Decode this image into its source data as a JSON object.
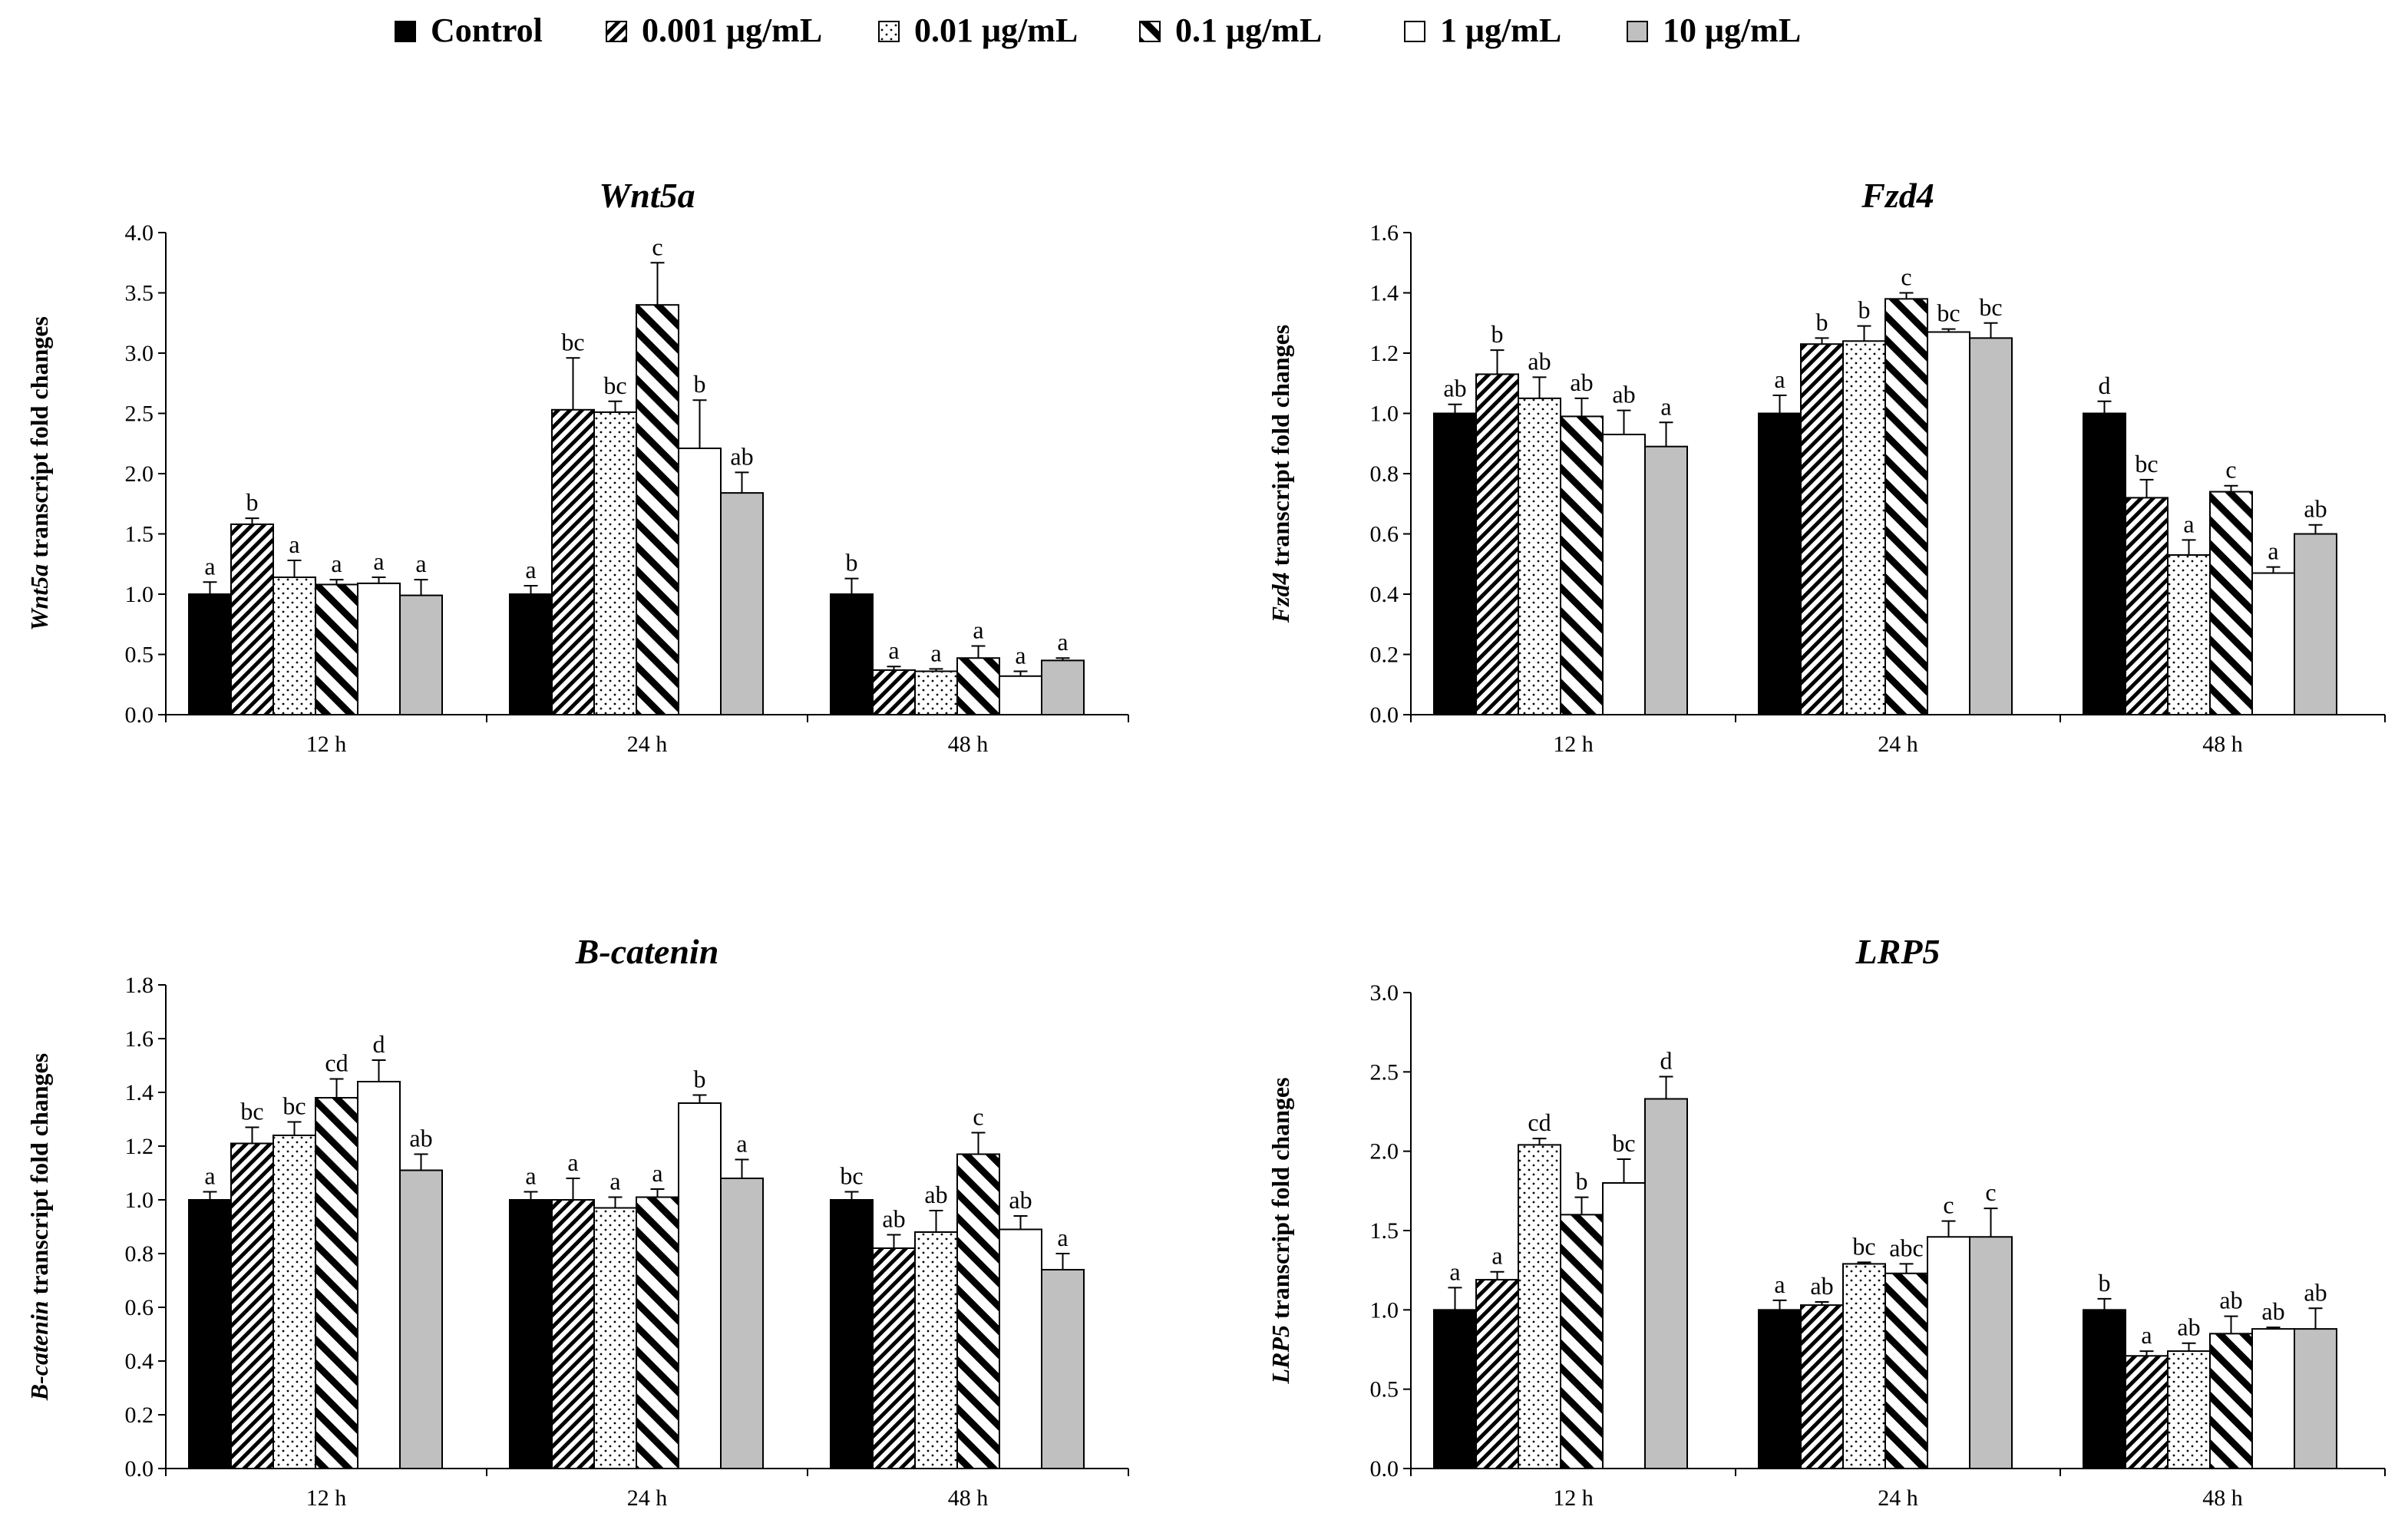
{
  "legend": [
    {
      "name": "Control",
      "pattern": "solid-black"
    },
    {
      "name": "0.001 μg/mL",
      "pattern": "dense-diagonal"
    },
    {
      "name": "0.01 μg/mL",
      "pattern": "dots"
    },
    {
      "name": "0.1 μg/mL",
      "pattern": "wide-diagonal"
    },
    {
      "name": "1 μg/mL",
      "pattern": "white"
    },
    {
      "name": "10 μg/mL",
      "pattern": "solid-gray"
    }
  ],
  "colors": {
    "control": "#000000",
    "gray": "#c0c0c0",
    "outline": "#000000",
    "background": "#ffffff"
  },
  "chart_data": [
    {
      "type": "bar",
      "title": "Wnt5a",
      "ylabel_gene": "Wnt5a",
      "ylabel_rest": " transcript fold changes",
      "categories": [
        "12 h",
        "24 h",
        "48 h"
      ],
      "ylim": [
        0,
        4.0
      ],
      "yticks": [
        "0.0",
        "0.5",
        "1.0",
        "1.5",
        "2.0",
        "2.5",
        "3.0",
        "3.5",
        "4.0"
      ],
      "series": [
        {
          "name": "Control",
          "values": [
            1.0,
            1.0,
            1.0
          ],
          "errors": [
            0.1,
            0.07,
            0.13
          ],
          "labels": [
            "a",
            "a",
            "b"
          ]
        },
        {
          "name": "0.001 μg/mL",
          "values": [
            1.58,
            2.53,
            0.37
          ],
          "errors": [
            0.05,
            0.43,
            0.03
          ],
          "labels": [
            "b",
            "bc",
            "a"
          ]
        },
        {
          "name": "0.01 μg/mL",
          "values": [
            1.14,
            2.51,
            0.36
          ],
          "errors": [
            0.14,
            0.09,
            0.02
          ],
          "labels": [
            "a",
            "bc",
            "a"
          ]
        },
        {
          "name": "0.1 μg/mL",
          "values": [
            1.08,
            3.4,
            0.47
          ],
          "errors": [
            0.04,
            0.35,
            0.1
          ],
          "labels": [
            "a",
            "c",
            "a"
          ]
        },
        {
          "name": "1 μg/mL",
          "values": [
            1.09,
            2.21,
            0.32
          ],
          "errors": [
            0.05,
            0.4,
            0.04
          ],
          "labels": [
            "a",
            "b",
            "a"
          ]
        },
        {
          "name": "10 μg/mL",
          "values": [
            0.99,
            1.84,
            0.45
          ],
          "errors": [
            0.13,
            0.17,
            0.02
          ],
          "labels": [
            "a",
            "ab",
            "a"
          ]
        }
      ]
    },
    {
      "type": "bar",
      "title": "Fzd4",
      "ylabel_gene": "Fzd4",
      "ylabel_rest": " transcript fold changes",
      "categories": [
        "12 h",
        "24 h",
        "48 h"
      ],
      "ylim": [
        0,
        1.6
      ],
      "yticks": [
        "0.0",
        "0.2",
        "0.4",
        "0.6",
        "0.8",
        "1.0",
        "1.2",
        "1.4",
        "1.6"
      ],
      "series": [
        {
          "name": "Control",
          "values": [
            1.0,
            1.0,
            1.0
          ],
          "errors": [
            0.03,
            0.06,
            0.04
          ],
          "labels": [
            "ab",
            "a",
            "d"
          ]
        },
        {
          "name": "0.001 μg/mL",
          "values": [
            1.13,
            1.23,
            0.72
          ],
          "errors": [
            0.08,
            0.02,
            0.06
          ],
          "labels": [
            "b",
            "b",
            "bc"
          ]
        },
        {
          "name": "0.01 μg/mL",
          "values": [
            1.05,
            1.24,
            0.53
          ],
          "errors": [
            0.07,
            0.05,
            0.05
          ],
          "labels": [
            "ab",
            "b",
            "a"
          ]
        },
        {
          "name": "0.1 μg/mL",
          "values": [
            0.99,
            1.38,
            0.74
          ],
          "errors": [
            0.06,
            0.02,
            0.02
          ],
          "labels": [
            "ab",
            "c",
            "c"
          ]
        },
        {
          "name": "1 μg/mL",
          "values": [
            0.93,
            1.27,
            0.47
          ],
          "errors": [
            0.08,
            0.01,
            0.02
          ],
          "labels": [
            "ab",
            "bc",
            "a"
          ]
        },
        {
          "name": "10 μg/mL",
          "values": [
            0.89,
            1.25,
            0.6
          ],
          "errors": [
            0.08,
            0.05,
            0.03
          ],
          "labels": [
            "a",
            "bc",
            "ab"
          ]
        }
      ]
    },
    {
      "type": "bar",
      "title": "B-catenin",
      "ylabel_gene": "B-catenin",
      "ylabel_rest": " transcript fold changes",
      "categories": [
        "12 h",
        "24 h",
        "48 h"
      ],
      "ylim": [
        0,
        1.8
      ],
      "yticks": [
        "0.0",
        "0.2",
        "0.4",
        "0.6",
        "0.8",
        "1.0",
        "1.2",
        "1.4",
        "1.6",
        "1.8"
      ],
      "series": [
        {
          "name": "Control",
          "values": [
            1.0,
            1.0,
            1.0
          ],
          "errors": [
            0.03,
            0.03,
            0.03
          ],
          "labels": [
            "a",
            "a",
            "bc"
          ]
        },
        {
          "name": "0.001 μg/mL",
          "values": [
            1.21,
            1.0,
            0.82
          ],
          "errors": [
            0.06,
            0.08,
            0.05
          ],
          "labels": [
            "bc",
            "a",
            "ab"
          ]
        },
        {
          "name": "0.01 μg/mL",
          "values": [
            1.24,
            0.97,
            0.88
          ],
          "errors": [
            0.05,
            0.04,
            0.08
          ],
          "labels": [
            "bc",
            "a",
            "ab"
          ]
        },
        {
          "name": "0.1 μg/mL",
          "values": [
            1.38,
            1.01,
            1.17
          ],
          "errors": [
            0.07,
            0.03,
            0.08
          ],
          "labels": [
            "cd",
            "a",
            "c"
          ]
        },
        {
          "name": "1 μg/mL",
          "values": [
            1.44,
            1.36,
            0.89
          ],
          "errors": [
            0.08,
            0.03,
            0.05
          ],
          "labels": [
            "d",
            "b",
            "ab"
          ]
        },
        {
          "name": "10 μg/mL",
          "values": [
            1.11,
            1.08,
            0.74
          ],
          "errors": [
            0.06,
            0.07,
            0.06
          ],
          "labels": [
            "ab",
            "a",
            "a"
          ]
        }
      ]
    },
    {
      "type": "bar",
      "title": "LRP5",
      "ylabel_gene": "LRP5",
      "ylabel_rest": " transcript fold changes",
      "categories": [
        "12 h",
        "24 h",
        "48 h"
      ],
      "ylim": [
        0,
        3.0
      ],
      "yticks": [
        "0.0",
        "0.5",
        "1.0",
        "1.5",
        "2.0",
        "2.5",
        "3.0"
      ],
      "series": [
        {
          "name": "Control",
          "values": [
            1.0,
            1.0,
            1.0
          ],
          "errors": [
            0.14,
            0.06,
            0.07
          ],
          "labels": [
            "a",
            "a",
            "b"
          ]
        },
        {
          "name": "0.001 μg/mL",
          "values": [
            1.19,
            1.03,
            0.71
          ],
          "errors": [
            0.05,
            0.02,
            0.03
          ],
          "labels": [
            "a",
            "ab",
            "a"
          ]
        },
        {
          "name": "0.01 μg/mL",
          "values": [
            2.04,
            1.29,
            0.74
          ],
          "errors": [
            0.04,
            0.01,
            0.05
          ],
          "labels": [
            "cd",
            "bc",
            "ab"
          ]
        },
        {
          "name": "0.1 μg/mL",
          "values": [
            1.6,
            1.23,
            0.85
          ],
          "errors": [
            0.11,
            0.06,
            0.11
          ],
          "labels": [
            "b",
            "abc",
            "ab"
          ]
        },
        {
          "name": "1 μg/mL",
          "values": [
            1.8,
            1.46,
            0.88
          ],
          "errors": [
            0.15,
            0.1,
            0.01
          ],
          "labels": [
            "bc",
            "c",
            "ab"
          ]
        },
        {
          "name": "10 μg/mL",
          "values": [
            2.33,
            1.46,
            0.88
          ],
          "errors": [
            0.14,
            0.18,
            0.13
          ],
          "labels": [
            "d",
            "c",
            "ab"
          ]
        }
      ]
    }
  ]
}
